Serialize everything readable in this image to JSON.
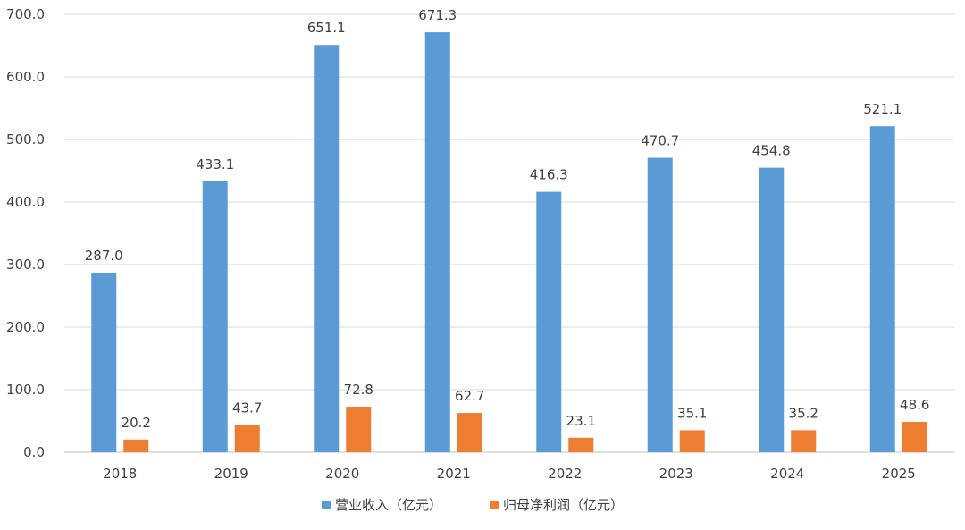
{
  "chart_data": {
    "type": "bar",
    "title": "",
    "xlabel": "",
    "ylabel": "",
    "ylim": [
      0,
      700
    ],
    "yticks": [
      "0.0",
      "100.0",
      "200.0",
      "300.0",
      "400.0",
      "500.0",
      "600.0",
      "700.0"
    ],
    "grid": true,
    "legend_position": "bottom",
    "categories": [
      "2018",
      "2019",
      "2020",
      "2021",
      "2022",
      "2023",
      "2024",
      "2025"
    ],
    "series": [
      {
        "name": "营业收入（亿元）",
        "color": "#5b9bd5",
        "values": [
          287.0,
          433.1,
          651.1,
          671.3,
          416.3,
          470.7,
          454.8,
          521.1
        ],
        "labels": [
          "287.0",
          "433.1",
          "651.1",
          "671.3",
          "416.3",
          "470.7",
          "454.8",
          "521.1"
        ]
      },
      {
        "name": "归母净利润（亿元）",
        "color": "#ed7d31",
        "values": [
          20.2,
          43.7,
          72.8,
          62.7,
          23.1,
          35.1,
          35.2,
          48.6
        ],
        "labels": [
          "20.2",
          "43.7",
          "72.8",
          "62.7",
          "23.1",
          "35.1",
          "35.2",
          "48.6"
        ]
      }
    ]
  }
}
